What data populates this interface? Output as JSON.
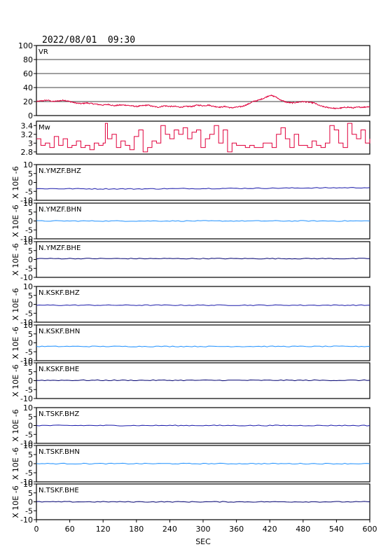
{
  "title": "2022/08/01  09:30",
  "chart_data": {
    "type": "line",
    "xlabel": "SEC",
    "xlim": [
      0,
      600
    ],
    "xticks": [
      0,
      60,
      120,
      180,
      240,
      300,
      360,
      420,
      480,
      540,
      600
    ],
    "grid": false,
    "panels": [
      {
        "label": "VR",
        "ylabel": "",
        "ylim": [
          0,
          100
        ],
        "yticks": [
          0,
          20,
          40,
          60,
          80,
          100
        ],
        "hgrid": [
          20,
          40,
          60,
          80
        ],
        "color": "#e0003c",
        "series": {
          "x": [
            0,
            10,
            20,
            30,
            40,
            50,
            60,
            70,
            80,
            90,
            100,
            110,
            120,
            130,
            140,
            150,
            160,
            170,
            180,
            190,
            200,
            210,
            220,
            230,
            240,
            250,
            260,
            270,
            280,
            290,
            300,
            310,
            320,
            330,
            340,
            350,
            360,
            370,
            380,
            390,
            400,
            410,
            420,
            430,
            440,
            450,
            460,
            470,
            480,
            490,
            500,
            510,
            520,
            530,
            540,
            550,
            560,
            570,
            580,
            590,
            600
          ],
          "y": [
            20,
            21,
            22,
            20,
            21,
            22,
            20,
            18,
            17,
            18,
            17,
            16,
            15,
            16,
            14,
            15,
            15,
            14,
            13,
            14,
            15,
            13,
            12,
            14,
            13,
            13,
            12,
            13,
            13,
            15,
            14,
            15,
            13,
            12,
            13,
            11,
            12,
            13,
            16,
            20,
            22,
            25,
            29,
            27,
            22,
            19,
            18,
            19,
            20,
            19,
            18,
            14,
            12,
            11,
            10,
            11,
            12,
            11,
            12,
            12,
            13
          ]
        }
      },
      {
        "label": "Mw",
        "ylabel": "",
        "ylim": [
          2.75,
          3.5
        ],
        "yticks": [
          2.8,
          3.0,
          3.2,
          3.4
        ],
        "hgrid": [],
        "color": "#e0003c",
        "series": {
          "x": [
            0,
            8,
            16,
            24,
            32,
            40,
            48,
            56,
            64,
            72,
            80,
            88,
            96,
            104,
            112,
            120,
            124,
            128,
            136,
            144,
            152,
            160,
            168,
            176,
            184,
            192,
            200,
            208,
            216,
            224,
            232,
            240,
            248,
            256,
            264,
            272,
            280,
            288,
            296,
            304,
            312,
            320,
            328,
            336,
            344,
            352,
            360,
            368,
            376,
            384,
            392,
            400,
            408,
            416,
            424,
            432,
            440,
            448,
            456,
            464,
            472,
            480,
            488,
            496,
            504,
            512,
            520,
            528,
            536,
            544,
            552,
            560,
            568,
            576,
            584,
            592,
            600
          ],
          "y": [
            3.1,
            2.95,
            3.0,
            2.9,
            3.15,
            2.95,
            3.1,
            2.9,
            2.95,
            3.05,
            2.9,
            2.95,
            2.85,
            3.0,
            2.95,
            3.0,
            3.45,
            3.1,
            3.2,
            2.9,
            3.05,
            2.95,
            2.85,
            3.15,
            3.3,
            2.8,
            2.9,
            3.05,
            3.0,
            3.4,
            3.2,
            3.1,
            3.3,
            3.2,
            3.35,
            3.1,
            3.25,
            3.3,
            2.9,
            3.1,
            3.2,
            3.4,
            3.0,
            3.3,
            2.8,
            3.0,
            2.95,
            2.95,
            2.9,
            2.95,
            2.9,
            2.9,
            3.0,
            3.0,
            2.9,
            3.2,
            3.35,
            3.1,
            2.9,
            3.2,
            2.95,
            2.95,
            2.9,
            3.05,
            2.95,
            2.9,
            3.0,
            3.4,
            3.3,
            3.0,
            2.9,
            3.45,
            3.2,
            3.1,
            3.3,
            3.0,
            3.1
          ]
        }
      },
      {
        "label": "N.YMZF.BHZ",
        "ylabel": "X 10E -6",
        "ylim": [
          -10,
          10
        ],
        "yticks": [
          -10,
          -5,
          0,
          5,
          10
        ],
        "hgrid": [],
        "color": "#1a1aaa",
        "series": {
          "x": [
            0,
            60,
            120,
            180,
            240,
            300,
            360,
            420,
            480,
            540,
            600
          ],
          "y": [
            -3.5,
            -3.5,
            -3.6,
            -3.6,
            -3.5,
            -3.4,
            -3.3,
            -3.2,
            -3.1,
            -3.0,
            -2.9
          ]
        }
      },
      {
        "label": "N.YMZF.BHN",
        "ylabel": "X 10E -6",
        "ylim": [
          -10,
          10
        ],
        "yticks": [
          -10,
          -5,
          0,
          5,
          10
        ],
        "hgrid": [],
        "color": "#1e90ff",
        "series": {
          "x": [
            0,
            60,
            120,
            180,
            240,
            300,
            360,
            420,
            480,
            540,
            600
          ],
          "y": [
            0,
            0,
            0,
            0,
            0,
            0,
            0,
            0,
            0,
            0,
            0
          ]
        }
      },
      {
        "label": "N.YMZF.BHE",
        "ylabel": "X 10E -6",
        "ylim": [
          -10,
          10
        ],
        "yticks": [
          -10,
          -5,
          0,
          5,
          10
        ],
        "hgrid": [],
        "color": "#000070",
        "series": {
          "x": [
            0,
            60,
            120,
            180,
            240,
            300,
            360,
            420,
            480,
            540,
            600
          ],
          "y": [
            0.5,
            0.5,
            0.5,
            0.5,
            0.5,
            0.5,
            0.5,
            0.5,
            0.5,
            0.5,
            0.5
          ]
        }
      },
      {
        "label": "N.KSKF.BHZ",
        "ylabel": "X 10E -6",
        "ylim": [
          -10,
          10
        ],
        "yticks": [
          -10,
          -5,
          0,
          5,
          10
        ],
        "hgrid": [],
        "color": "#1a1aaa",
        "series": {
          "x": [
            0,
            60,
            120,
            180,
            240,
            300,
            360,
            420,
            480,
            540,
            600
          ],
          "y": [
            -0.5,
            -0.5,
            -0.5,
            -0.5,
            -0.5,
            -0.5,
            -0.5,
            -0.5,
            -0.5,
            -0.5,
            -0.5
          ]
        }
      },
      {
        "label": "N.KSKF.BHN",
        "ylabel": "X 10E -6",
        "ylim": [
          -10,
          10
        ],
        "yticks": [
          -10,
          -5,
          0,
          5,
          10
        ],
        "hgrid": [],
        "color": "#1e90ff",
        "series": {
          "x": [
            0,
            60,
            120,
            180,
            240,
            300,
            360,
            420,
            480,
            540,
            600
          ],
          "y": [
            -2,
            -2,
            -2,
            -2,
            -2,
            -2,
            -2,
            -2,
            -2,
            -2,
            -2
          ]
        }
      },
      {
        "label": "N.KSKF.BHE",
        "ylabel": "X 10E -6",
        "ylim": [
          -10,
          10
        ],
        "yticks": [
          -10,
          -5,
          0,
          5,
          10
        ],
        "hgrid": [],
        "color": "#000070",
        "series": {
          "x": [
            0,
            60,
            120,
            180,
            240,
            300,
            360,
            420,
            480,
            540,
            600
          ],
          "y": [
            0.2,
            0.2,
            0.2,
            0.2,
            0.2,
            0.2,
            0.2,
            0.2,
            0.2,
            0.2,
            0.2
          ]
        }
      },
      {
        "label": "N.TSKF.BHZ",
        "ylabel": "X 10E -6",
        "ylim": [
          -10,
          10
        ],
        "yticks": [
          -10,
          -5,
          0,
          5,
          10
        ],
        "hgrid": [],
        "color": "#1a1aaa",
        "series": {
          "x": [
            0,
            60,
            120,
            180,
            240,
            300,
            360,
            420,
            480,
            540,
            600
          ],
          "y": [
            0,
            0,
            0,
            0,
            0,
            0,
            0,
            0,
            0,
            0,
            0
          ]
        }
      },
      {
        "label": "N.TSKF.BHN",
        "ylabel": "X 10E -6",
        "ylim": [
          -10,
          10
        ],
        "yticks": [
          -10,
          -5,
          0,
          5,
          10
        ],
        "hgrid": [],
        "color": "#1e90ff",
        "series": {
          "x": [
            0,
            60,
            120,
            180,
            240,
            300,
            360,
            420,
            480,
            540,
            600
          ],
          "y": [
            0,
            0,
            0,
            0,
            0,
            0,
            0,
            0,
            0,
            0,
            0
          ]
        }
      },
      {
        "label": "N.TSKF.BHE",
        "ylabel": "X 10E -6",
        "ylim": [
          -10,
          10
        ],
        "yticks": [
          -10,
          -5,
          0,
          5,
          10
        ],
        "hgrid": [],
        "color": "#000070",
        "series": {
          "x": [
            0,
            60,
            120,
            180,
            240,
            300,
            360,
            420,
            480,
            540,
            600
          ],
          "y": [
            0,
            0,
            0,
            0,
            0,
            0,
            0,
            0,
            0,
            0,
            0
          ]
        }
      }
    ]
  }
}
